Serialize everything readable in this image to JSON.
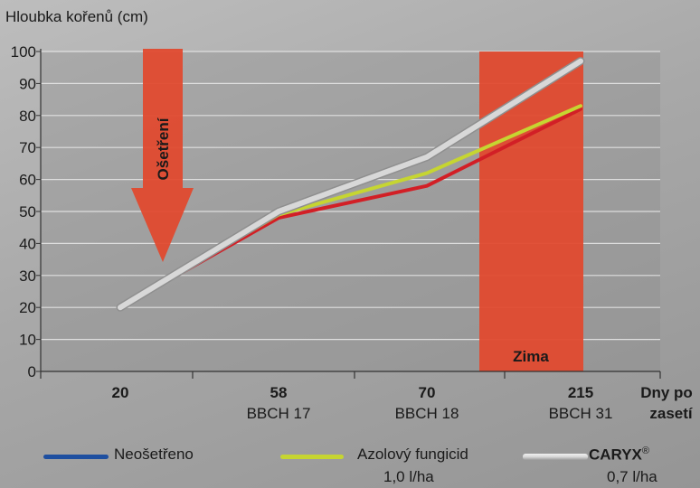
{
  "chart_data": {
    "type": "line",
    "ylabel": "Hloubka kořenů (cm)",
    "xlabel": "Dny po zasetí",
    "ylim": [
      0,
      100
    ],
    "yticks": [
      0,
      10,
      20,
      30,
      40,
      50,
      60,
      70,
      80,
      90,
      100
    ],
    "grid": true,
    "x_ticks": [
      {
        "value": "20",
        "sub": ""
      },
      {
        "value": "58",
        "sub": "BBCH 17"
      },
      {
        "value": "70",
        "sub": "BBCH 18"
      },
      {
        "value": "215",
        "sub": "BBCH 31"
      }
    ],
    "series": [
      {
        "name": "Neošetřeno",
        "color": "#1e4fa0",
        "values": [
          20,
          48,
          58,
          82
        ]
      },
      {
        "name": "Azolový fungicid",
        "sub": "1,0 l/ha",
        "color": "#c6d531",
        "values": [
          20,
          49,
          62,
          83
        ]
      },
      {
        "name": "CARYX",
        "mark": "®",
        "sub": "0,7 l/ha",
        "color": "#d8d8d8",
        "values": [
          20,
          50,
          67,
          97
        ]
      }
    ],
    "treatment_color": "#d21f26",
    "annotations": [
      {
        "text": "Ošetření",
        "type": "arrow",
        "color": "#e04a2f"
      },
      {
        "text": "Zima",
        "type": "band",
        "color": "#e04a2f"
      }
    ]
  }
}
